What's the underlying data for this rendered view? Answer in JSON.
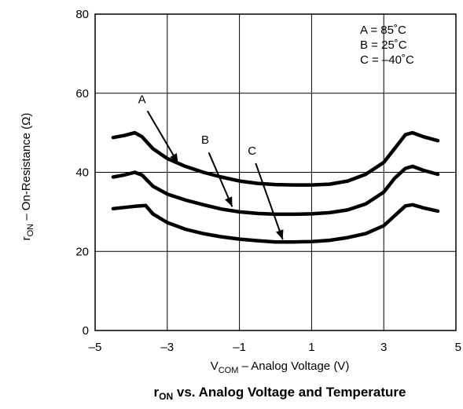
{
  "chart_data": {
    "type": "line",
    "title": "r",
    "title_sub": "ON",
    "title_rest": " vs. Analog Voltage and Temperature",
    "xlabel": "V",
    "xlabel_sub": "COM",
    "xlabel_rest": " – Analog Voltage (V)",
    "ylabel": "r",
    "ylabel_sub": "ON",
    "ylabel_rest": " –  On-Resistance (Ω)",
    "xlim": [
      -5,
      5
    ],
    "ylim": [
      0,
      80
    ],
    "xticks": [
      -5,
      -3,
      -1,
      1,
      3,
      5
    ],
    "xtick_labels": [
      "–5",
      "–3",
      "–1",
      "1",
      "3",
      "5"
    ],
    "yticks": [
      0,
      20,
      40,
      60,
      80
    ],
    "ytick_labels": [
      "0",
      "20",
      "40",
      "60",
      "80"
    ],
    "grid": true,
    "legend_lines": [
      "A = 85˚C",
      "B = 25˚C",
      "C = –40˚C"
    ],
    "legend_placement": "top-right",
    "series": [
      {
        "name": "A",
        "x": [
          -4.5,
          -4.2,
          -3.9,
          -3.7,
          -3.4,
          -3.0,
          -2.5,
          -2.0,
          -1.5,
          -1.0,
          -0.5,
          0,
          0.5,
          1.0,
          1.5,
          2.0,
          2.5,
          3.0,
          3.3,
          3.6,
          3.8,
          4.1,
          4.5
        ],
        "y": [
          48.8,
          49.3,
          50.0,
          49.0,
          46.0,
          43.5,
          41.5,
          40.0,
          38.8,
          37.8,
          37.2,
          36.9,
          36.8,
          36.8,
          37.0,
          37.8,
          39.5,
          42.5,
          46.0,
          49.5,
          50.0,
          49.0,
          48.0
        ]
      },
      {
        "name": "B",
        "x": [
          -4.5,
          -4.2,
          -3.9,
          -3.7,
          -3.4,
          -3.0,
          -2.5,
          -2.0,
          -1.5,
          -1.0,
          -0.5,
          0,
          0.5,
          1.0,
          1.5,
          2.0,
          2.5,
          3.0,
          3.3,
          3.6,
          3.8,
          4.1,
          4.5
        ],
        "y": [
          38.8,
          39.3,
          40.0,
          39.3,
          36.5,
          34.5,
          33.0,
          31.8,
          30.7,
          30.0,
          29.6,
          29.4,
          29.4,
          29.5,
          29.8,
          30.5,
          32.0,
          35.0,
          38.5,
          41.0,
          41.5,
          40.5,
          39.5
        ]
      },
      {
        "name": "C",
        "x": [
          -4.5,
          -4.2,
          -3.9,
          -3.6,
          -3.4,
          -3.0,
          -2.5,
          -2.0,
          -1.5,
          -1.0,
          -0.5,
          0,
          0.5,
          1.0,
          1.5,
          2.0,
          2.5,
          3.0,
          3.3,
          3.6,
          3.8,
          4.1,
          4.5
        ],
        "y": [
          30.8,
          31.1,
          31.4,
          31.6,
          29.5,
          27.3,
          25.6,
          24.5,
          23.7,
          23.1,
          22.7,
          22.4,
          22.4,
          22.5,
          22.8,
          23.5,
          24.5,
          26.5,
          29.0,
          31.5,
          31.8,
          31.0,
          30.2
        ]
      }
    ],
    "annotations": [
      {
        "label": "A",
        "text_at": [
          -3.7,
          57.5
        ],
        "arrow_from": [
          -3.55,
          55.5
        ],
        "arrow_to": [
          -2.7,
          42.3
        ]
      },
      {
        "label": "B",
        "text_at": [
          -1.95,
          47.2
        ],
        "arrow_from": [
          -1.85,
          45.0
        ],
        "arrow_to": [
          -1.2,
          31.3
        ]
      },
      {
        "label": "C",
        "text_at": [
          -0.65,
          44.5
        ],
        "arrow_from": [
          -0.55,
          42.3
        ],
        "arrow_to": [
          0.2,
          23.0
        ]
      }
    ]
  }
}
